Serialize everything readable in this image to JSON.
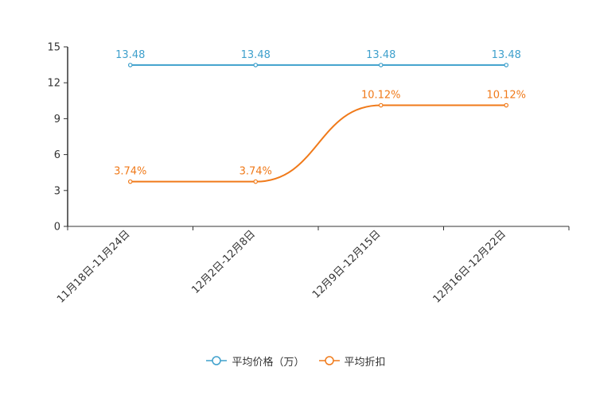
{
  "chart_data": {
    "type": "line",
    "categories": [
      "11月18日-11月24日",
      "12月2日-12月8日",
      "12月9日-12月15日",
      "12月16日-12月22日"
    ],
    "y_ticks": [
      "0",
      "3",
      "6",
      "9",
      "12",
      "15"
    ],
    "ylim": [
      0,
      15
    ],
    "series": [
      {
        "name": "平均价格（万）",
        "color": "#3ea0cc",
        "values": [
          13.48,
          13.48,
          13.48,
          13.48
        ],
        "labels": [
          "13.48",
          "13.48",
          "13.48",
          "13.48"
        ]
      },
      {
        "name": "平均折扣",
        "color": "#f07a1a",
        "values": [
          3.74,
          3.74,
          10.12,
          10.12
        ],
        "labels": [
          "3.74%",
          "3.74%",
          "10.12%",
          "10.12%"
        ]
      }
    ],
    "legend_position": "bottom-center"
  }
}
